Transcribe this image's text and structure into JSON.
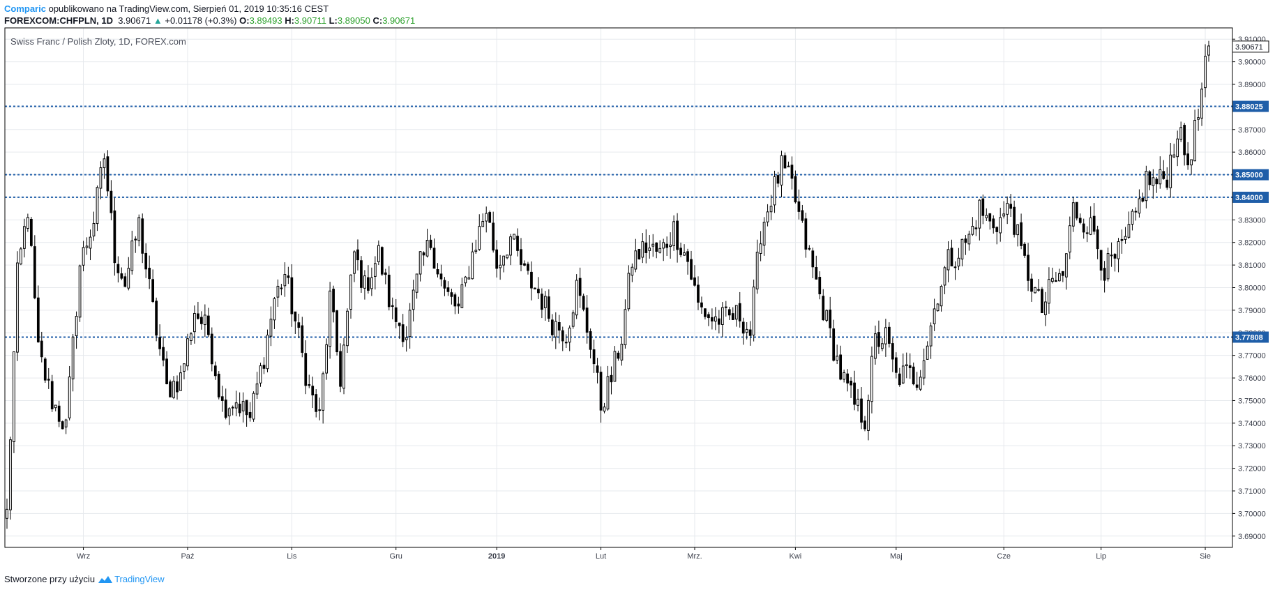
{
  "header": {
    "author": "Comparic",
    "published_text": "opublikowano na TradingView.com, Sierpień 01, 2019 10:35:16 CEST"
  },
  "symbol_line": {
    "symbol": "FOREXCOM:CHFPLN, 1D",
    "last": "3.90671",
    "change": "+0.01178 (+0.3%)",
    "o_label": "O:",
    "o_value": "3.89493",
    "h_label": "H:",
    "h_value": "3.90711",
    "l_label": "L:",
    "l_value": "3.89050",
    "c_label": "C:",
    "c_value": "3.90671"
  },
  "footer": {
    "created_with": "Stworzone przy użyciu",
    "brand": "TradingView"
  },
  "colors": {
    "grid": "#e6e9ed",
    "candle": "#000000",
    "level_line": "#1f5ea8",
    "level_label_bg": "#1f5ea8",
    "brand": "#2196f3",
    "up": "#26a69a"
  },
  "chart_data": {
    "type": "candlestick",
    "title": "Swiss Franc / Polish Zloty, 1D, FOREX.com",
    "y_range": [
      3.685,
      3.915
    ],
    "y_ticks": [
      "3.91000",
      "3.90000",
      "3.89000",
      "3.88000",
      "3.87000",
      "3.86000",
      "3.85000",
      "3.84000",
      "3.83000",
      "3.82000",
      "3.81000",
      "3.80000",
      "3.79000",
      "3.78000",
      "3.77000",
      "3.76000",
      "3.75000",
      "3.74000",
      "3.73000",
      "3.72000",
      "3.71000",
      "3.70000",
      "3.69000"
    ],
    "x_labels": [
      {
        "label": "Wrz",
        "index": 22,
        "bold": false
      },
      {
        "label": "Paź",
        "index": 52,
        "bold": false
      },
      {
        "label": "Lis",
        "index": 82,
        "bold": false
      },
      {
        "label": "Gru",
        "index": 112,
        "bold": false
      },
      {
        "label": "2019",
        "index": 141,
        "bold": true
      },
      {
        "label": "Lut",
        "index": 171,
        "bold": false
      },
      {
        "label": "Mrz.",
        "index": 198,
        "bold": false
      },
      {
        "label": "Kwi",
        "index": 227,
        "bold": false
      },
      {
        "label": "Maj",
        "index": 256,
        "bold": false
      },
      {
        "label": "Cze",
        "index": 287,
        "bold": false
      },
      {
        "label": "Lip",
        "index": 315,
        "bold": false
      },
      {
        "label": "Sie",
        "index": 345,
        "bold": false
      }
    ],
    "levels": [
      {
        "value": 3.88025,
        "label": "3.88025"
      },
      {
        "value": 3.85,
        "label": "3.85000"
      },
      {
        "value": 3.84,
        "label": "3.84000"
      },
      {
        "value": 3.77808,
        "label": "3.77808"
      }
    ],
    "last_price": {
      "value": 3.90671,
      "label": "3.90671"
    },
    "anchors": [
      [
        0,
        3.7
      ],
      [
        3,
        3.805
      ],
      [
        6,
        3.835
      ],
      [
        9,
        3.772
      ],
      [
        13,
        3.75
      ],
      [
        17,
        3.738
      ],
      [
        21,
        3.81
      ],
      [
        25,
        3.83
      ],
      [
        28,
        3.858
      ],
      [
        31,
        3.815
      ],
      [
        34,
        3.802
      ],
      [
        38,
        3.828
      ],
      [
        42,
        3.79
      ],
      [
        46,
        3.755
      ],
      [
        50,
        3.76
      ],
      [
        54,
        3.79
      ],
      [
        58,
        3.78
      ],
      [
        62,
        3.748
      ],
      [
        66,
        3.75
      ],
      [
        70,
        3.742
      ],
      [
        74,
        3.77
      ],
      [
        77,
        3.795
      ],
      [
        80,
        3.806
      ],
      [
        83,
        3.785
      ],
      [
        87,
        3.755
      ],
      [
        90,
        3.742
      ],
      [
        93,
        3.795
      ],
      [
        96,
        3.76
      ],
      [
        100,
        3.815
      ],
      [
        103,
        3.8
      ],
      [
        107,
        3.815
      ],
      [
        111,
        3.788
      ],
      [
        115,
        3.78
      ],
      [
        119,
        3.81
      ],
      [
        122,
        3.82
      ],
      [
        126,
        3.798
      ],
      [
        130,
        3.79
      ],
      [
        134,
        3.815
      ],
      [
        138,
        3.835
      ],
      [
        141,
        3.81
      ],
      [
        145,
        3.822
      ],
      [
        149,
        3.806
      ],
      [
        153,
        3.798
      ],
      [
        157,
        3.785
      ],
      [
        161,
        3.78
      ],
      [
        164,
        3.8
      ],
      [
        168,
        3.776
      ],
      [
        171,
        3.748
      ],
      [
        174,
        3.76
      ],
      [
        177,
        3.778
      ],
      [
        180,
        3.812
      ],
      [
        184,
        3.818
      ],
      [
        188,
        3.815
      ],
      [
        192,
        3.826
      ],
      [
        196,
        3.812
      ],
      [
        199,
        3.792
      ],
      [
        203,
        3.786
      ],
      [
        207,
        3.786
      ],
      [
        211,
        3.788
      ],
      [
        214,
        3.78
      ],
      [
        217,
        3.825
      ],
      [
        220,
        3.84
      ],
      [
        223,
        3.853
      ],
      [
        226,
        3.845
      ],
      [
        229,
        3.825
      ],
      [
        232,
        3.808
      ],
      [
        236,
        3.785
      ],
      [
        240,
        3.762
      ],
      [
        244,
        3.748
      ],
      [
        247,
        3.742
      ],
      [
        250,
        3.776
      ],
      [
        253,
        3.778
      ],
      [
        256,
        3.76
      ],
      [
        259,
        3.762
      ],
      [
        262,
        3.76
      ],
      [
        265,
        3.776
      ],
      [
        268,
        3.798
      ],
      [
        271,
        3.812
      ],
      [
        274,
        3.816
      ],
      [
        277,
        3.822
      ],
      [
        280,
        3.835
      ],
      [
        283,
        3.828
      ],
      [
        286,
        3.83
      ],
      [
        289,
        3.836
      ],
      [
        292,
        3.815
      ],
      [
        295,
        3.802
      ],
      [
        298,
        3.79
      ],
      [
        301,
        3.802
      ],
      [
        304,
        3.805
      ],
      [
        307,
        3.835
      ],
      [
        310,
        3.83
      ],
      [
        313,
        3.825
      ],
      [
        316,
        3.808
      ],
      [
        319,
        3.812
      ],
      [
        322,
        3.82
      ],
      [
        325,
        3.832
      ],
      [
        328,
        3.848
      ],
      [
        331,
        3.846
      ],
      [
        334,
        3.85
      ],
      [
        337,
        3.87
      ],
      [
        340,
        3.855
      ],
      [
        343,
        3.876
      ],
      [
        346,
        3.907
      ]
    ]
  }
}
